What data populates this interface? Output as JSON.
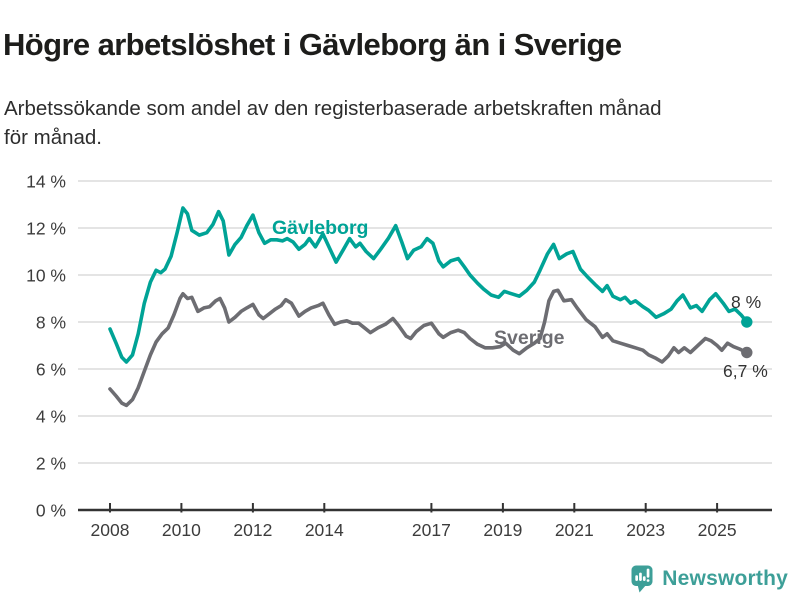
{
  "header": {
    "title": "Högre arbetslöshet i Gävleborg än i Sverige",
    "subtitle_line1": "Arbetssökande som andel av den registerbaserade arbetskraften månad",
    "subtitle_line2": "för månad."
  },
  "footer": {
    "brand": "Newsworthy",
    "logo_icon": "newsworthy-speech-bubble-bar-chart-icon"
  },
  "colors": {
    "gavleborg": "#00a396",
    "sverige": "#6d6d72",
    "axis": "#333333",
    "grid": "#dcdcdc",
    "tick_text": "#3c3c3c",
    "brand_teal": "#3d9f98",
    "title_text": "#1d1d1b"
  },
  "chart_data": {
    "type": "line",
    "title": "Högre arbetslöshet i Gävleborg än i Sverige",
    "subtitle": "Arbetssökande som andel av den registerbaserade arbetskraften månad för månad.",
    "xlabel": "",
    "ylabel": "",
    "grid": true,
    "legend_position": "inline-labels",
    "ylim": [
      0,
      14
    ],
    "xlim": [
      2008,
      2026.3
    ],
    "y_ticks": [
      0,
      2,
      4,
      6,
      8,
      10,
      12,
      14
    ],
    "y_suffix": " %",
    "x_ticks": [
      2008,
      2010,
      2012,
      2014,
      2017,
      2019,
      2021,
      2023,
      2025
    ],
    "series": [
      {
        "name": "Gävleborg",
        "color": "#00a396",
        "end_label": "8 %",
        "end_value": 8.0,
        "points": [
          [
            2008.0,
            7.7
          ],
          [
            2008.17,
            7.1
          ],
          [
            2008.33,
            6.5
          ],
          [
            2008.46,
            6.3
          ],
          [
            2008.63,
            6.6
          ],
          [
            2008.79,
            7.5
          ],
          [
            2008.96,
            8.8
          ],
          [
            2009.13,
            9.7
          ],
          [
            2009.29,
            10.2
          ],
          [
            2009.42,
            10.1
          ],
          [
            2009.54,
            10.25
          ],
          [
            2009.71,
            10.8
          ],
          [
            2009.88,
            11.8
          ],
          [
            2010.04,
            12.85
          ],
          [
            2010.17,
            12.6
          ],
          [
            2010.29,
            11.9
          ],
          [
            2010.5,
            11.7
          ],
          [
            2010.71,
            11.8
          ],
          [
            2010.88,
            12.15
          ],
          [
            2011.04,
            12.7
          ],
          [
            2011.17,
            12.3
          ],
          [
            2011.33,
            10.85
          ],
          [
            2011.5,
            11.3
          ],
          [
            2011.67,
            11.6
          ],
          [
            2011.83,
            12.1
          ],
          [
            2012.0,
            12.55
          ],
          [
            2012.17,
            11.8
          ],
          [
            2012.33,
            11.35
          ],
          [
            2012.5,
            11.5
          ],
          [
            2012.67,
            11.5
          ],
          [
            2012.83,
            11.45
          ],
          [
            2012.96,
            11.55
          ],
          [
            2013.13,
            11.4
          ],
          [
            2013.29,
            11.1
          ],
          [
            2013.46,
            11.3
          ],
          [
            2013.58,
            11.55
          ],
          [
            2013.75,
            11.2
          ],
          [
            2013.96,
            11.75
          ],
          [
            2014.13,
            11.2
          ],
          [
            2014.33,
            10.55
          ],
          [
            2014.54,
            11.1
          ],
          [
            2014.71,
            11.55
          ],
          [
            2014.88,
            11.2
          ],
          [
            2015.0,
            11.35
          ],
          [
            2015.17,
            11.0
          ],
          [
            2015.38,
            10.7
          ],
          [
            2015.58,
            11.1
          ],
          [
            2015.79,
            11.55
          ],
          [
            2016.0,
            12.1
          ],
          [
            2016.17,
            11.4
          ],
          [
            2016.33,
            10.7
          ],
          [
            2016.5,
            11.05
          ],
          [
            2016.71,
            11.2
          ],
          [
            2016.88,
            11.55
          ],
          [
            2017.04,
            11.35
          ],
          [
            2017.21,
            10.6
          ],
          [
            2017.33,
            10.35
          ],
          [
            2017.54,
            10.6
          ],
          [
            2017.75,
            10.7
          ],
          [
            2017.92,
            10.35
          ],
          [
            2018.08,
            10.0
          ],
          [
            2018.29,
            9.65
          ],
          [
            2018.46,
            9.4
          ],
          [
            2018.67,
            9.15
          ],
          [
            2018.88,
            9.05
          ],
          [
            2019.04,
            9.3
          ],
          [
            2019.25,
            9.2
          ],
          [
            2019.46,
            9.1
          ],
          [
            2019.67,
            9.35
          ],
          [
            2019.88,
            9.7
          ],
          [
            2020.04,
            10.2
          ],
          [
            2020.25,
            10.9
          ],
          [
            2020.42,
            11.3
          ],
          [
            2020.58,
            10.7
          ],
          [
            2020.79,
            10.9
          ],
          [
            2020.96,
            11.0
          ],
          [
            2021.17,
            10.25
          ],
          [
            2021.38,
            9.9
          ],
          [
            2021.58,
            9.6
          ],
          [
            2021.79,
            9.3
          ],
          [
            2021.92,
            9.55
          ],
          [
            2022.08,
            9.1
          ],
          [
            2022.29,
            8.95
          ],
          [
            2022.42,
            9.05
          ],
          [
            2022.58,
            8.8
          ],
          [
            2022.71,
            8.9
          ],
          [
            2022.92,
            8.65
          ],
          [
            2023.08,
            8.5
          ],
          [
            2023.29,
            8.2
          ],
          [
            2023.5,
            8.35
          ],
          [
            2023.71,
            8.55
          ],
          [
            2023.88,
            8.9
          ],
          [
            2024.04,
            9.15
          ],
          [
            2024.25,
            8.6
          ],
          [
            2024.42,
            8.7
          ],
          [
            2024.58,
            8.45
          ],
          [
            2024.79,
            8.95
          ],
          [
            2024.96,
            9.2
          ],
          [
            2025.17,
            8.8
          ],
          [
            2025.33,
            8.45
          ],
          [
            2025.5,
            8.55
          ],
          [
            2025.67,
            8.3
          ],
          [
            2025.83,
            8.0
          ]
        ]
      },
      {
        "name": "Sverige",
        "color": "#6d6d72",
        "end_label": "6,7 %",
        "end_value": 6.7,
        "points": [
          [
            2008.0,
            5.15
          ],
          [
            2008.17,
            4.85
          ],
          [
            2008.33,
            4.55
          ],
          [
            2008.46,
            4.45
          ],
          [
            2008.63,
            4.7
          ],
          [
            2008.79,
            5.2
          ],
          [
            2008.96,
            5.9
          ],
          [
            2009.13,
            6.6
          ],
          [
            2009.29,
            7.15
          ],
          [
            2009.46,
            7.5
          ],
          [
            2009.63,
            7.75
          ],
          [
            2009.79,
            8.3
          ],
          [
            2009.96,
            9.0
          ],
          [
            2010.04,
            9.2
          ],
          [
            2010.17,
            9.0
          ],
          [
            2010.29,
            9.05
          ],
          [
            2010.46,
            8.45
          ],
          [
            2010.63,
            8.6
          ],
          [
            2010.79,
            8.65
          ],
          [
            2010.96,
            8.9
          ],
          [
            2011.08,
            9.0
          ],
          [
            2011.21,
            8.6
          ],
          [
            2011.33,
            8.0
          ],
          [
            2011.5,
            8.2
          ],
          [
            2011.67,
            8.45
          ],
          [
            2011.83,
            8.6
          ],
          [
            2012.0,
            8.75
          ],
          [
            2012.17,
            8.3
          ],
          [
            2012.29,
            8.15
          ],
          [
            2012.46,
            8.35
          ],
          [
            2012.63,
            8.55
          ],
          [
            2012.79,
            8.7
          ],
          [
            2012.92,
            8.95
          ],
          [
            2013.08,
            8.8
          ],
          [
            2013.29,
            8.25
          ],
          [
            2013.46,
            8.45
          ],
          [
            2013.63,
            8.6
          ],
          [
            2013.83,
            8.7
          ],
          [
            2013.96,
            8.8
          ],
          [
            2014.13,
            8.3
          ],
          [
            2014.29,
            7.9
          ],
          [
            2014.46,
            8.0
          ],
          [
            2014.63,
            8.05
          ],
          [
            2014.79,
            7.95
          ],
          [
            2014.96,
            7.95
          ],
          [
            2015.13,
            7.75
          ],
          [
            2015.29,
            7.55
          ],
          [
            2015.5,
            7.75
          ],
          [
            2015.71,
            7.9
          ],
          [
            2015.92,
            8.15
          ],
          [
            2016.08,
            7.85
          ],
          [
            2016.29,
            7.4
          ],
          [
            2016.42,
            7.3
          ],
          [
            2016.58,
            7.6
          ],
          [
            2016.79,
            7.85
          ],
          [
            2017.0,
            7.95
          ],
          [
            2017.21,
            7.5
          ],
          [
            2017.33,
            7.35
          ],
          [
            2017.54,
            7.55
          ],
          [
            2017.75,
            7.65
          ],
          [
            2017.92,
            7.55
          ],
          [
            2018.08,
            7.3
          ],
          [
            2018.29,
            7.05
          ],
          [
            2018.5,
            6.9
          ],
          [
            2018.71,
            6.9
          ],
          [
            2018.92,
            6.95
          ],
          [
            2019.08,
            7.1
          ],
          [
            2019.29,
            6.8
          ],
          [
            2019.46,
            6.65
          ],
          [
            2019.67,
            6.9
          ],
          [
            2019.88,
            7.1
          ],
          [
            2020.04,
            7.3
          ],
          [
            2020.17,
            8.0
          ],
          [
            2020.29,
            8.9
          ],
          [
            2020.42,
            9.3
          ],
          [
            2020.54,
            9.35
          ],
          [
            2020.71,
            8.9
          ],
          [
            2020.92,
            8.95
          ],
          [
            2021.08,
            8.6
          ],
          [
            2021.33,
            8.1
          ],
          [
            2021.58,
            7.8
          ],
          [
            2021.79,
            7.35
          ],
          [
            2021.92,
            7.5
          ],
          [
            2022.08,
            7.2
          ],
          [
            2022.29,
            7.1
          ],
          [
            2022.5,
            7.0
          ],
          [
            2022.71,
            6.9
          ],
          [
            2022.92,
            6.8
          ],
          [
            2023.08,
            6.6
          ],
          [
            2023.29,
            6.45
          ],
          [
            2023.46,
            6.3
          ],
          [
            2023.63,
            6.55
          ],
          [
            2023.79,
            6.9
          ],
          [
            2023.92,
            6.7
          ],
          [
            2024.08,
            6.9
          ],
          [
            2024.25,
            6.7
          ],
          [
            2024.46,
            7.0
          ],
          [
            2024.67,
            7.3
          ],
          [
            2024.83,
            7.2
          ],
          [
            2025.0,
            7.0
          ],
          [
            2025.13,
            6.8
          ],
          [
            2025.29,
            7.1
          ],
          [
            2025.46,
            6.95
          ],
          [
            2025.63,
            6.85
          ],
          [
            2025.83,
            6.7
          ]
        ]
      }
    ]
  }
}
